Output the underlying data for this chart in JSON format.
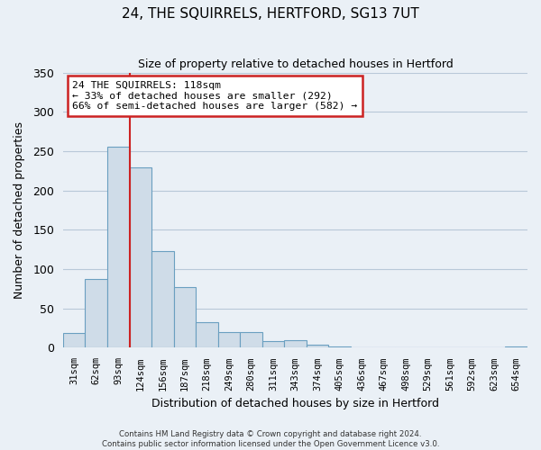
{
  "title": "24, THE SQUIRRELS, HERTFORD, SG13 7UT",
  "subtitle": "Size of property relative to detached houses in Hertford",
  "xlabel": "Distribution of detached houses by size in Hertford",
  "ylabel": "Number of detached properties",
  "categories": [
    "31sqm",
    "62sqm",
    "93sqm",
    "124sqm",
    "156sqm",
    "187sqm",
    "218sqm",
    "249sqm",
    "280sqm",
    "311sqm",
    "343sqm",
    "374sqm",
    "405sqm",
    "436sqm",
    "467sqm",
    "498sqm",
    "529sqm",
    "561sqm",
    "592sqm",
    "623sqm",
    "654sqm"
  ],
  "values": [
    19,
    87,
    256,
    229,
    123,
    77,
    33,
    20,
    20,
    9,
    10,
    4,
    2,
    1,
    0,
    0,
    0,
    0,
    0,
    0,
    2
  ],
  "bar_color": "#cfdce8",
  "bar_edge_color": "#6a9fc0",
  "vline_color": "#cc2222",
  "vline_index": 3,
  "ylim": [
    0,
    350
  ],
  "yticks": [
    0,
    50,
    100,
    150,
    200,
    250,
    300,
    350
  ],
  "annotation_title": "24 THE SQUIRRELS: 118sqm",
  "annotation_line1": "← 33% of detached houses are smaller (292)",
  "annotation_line2": "66% of semi-detached houses are larger (582) →",
  "annotation_box_facecolor": "#ffffff",
  "annotation_box_edgecolor": "#cc2222",
  "footer1": "Contains HM Land Registry data © Crown copyright and database right 2024.",
  "footer2": "Contains public sector information licensed under the Open Government Licence v3.0.",
  "fig_bgcolor": "#eaf0f6",
  "plot_bgcolor": "#eaf0f6",
  "grid_color": "#b8c8d8",
  "title_fontsize": 11,
  "subtitle_fontsize": 9
}
